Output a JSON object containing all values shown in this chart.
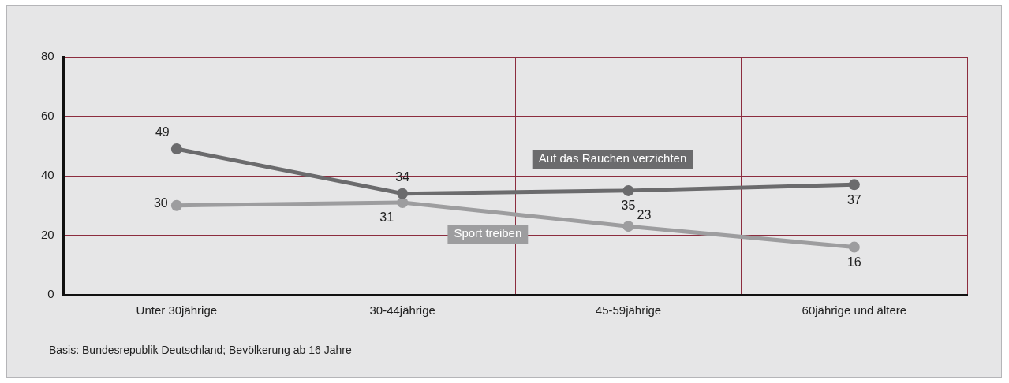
{
  "chart_data": {
    "type": "line",
    "categories": [
      "Unter 30jährige",
      "30-44jährige",
      "45-59jährige",
      "60jährige und ältere"
    ],
    "series": [
      {
        "name": "Auf das Rauchen verzichten",
        "color": "#6b6b6d",
        "values": [
          49,
          34,
          35,
          37
        ]
      },
      {
        "name": "Sport treiben",
        "color": "#9d9d9f",
        "values": [
          30,
          31,
          23,
          16
        ]
      }
    ],
    "ylim": [
      0,
      80
    ],
    "yticks": [
      0,
      20,
      40,
      60,
      80
    ],
    "grid": true,
    "marker": "circle",
    "line_style": "solid",
    "data_labels": true,
    "annotations": [
      "Basis: Bundesrepublik Deutschland; Bevölkerung ab 16 Jahre"
    ]
  }
}
